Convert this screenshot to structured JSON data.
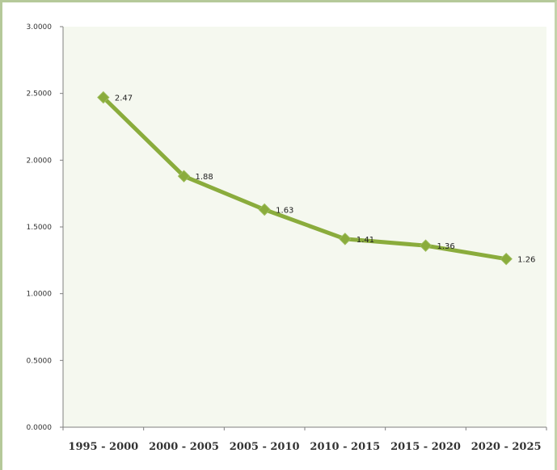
{
  "chart_data": {
    "type": "line",
    "categories": [
      "1995 - 2000",
      "2000 - 2005",
      "2005 - 2010",
      "2010 - 2015",
      "2015 - 2020",
      "2020 - 2025"
    ],
    "series": [
      {
        "values": [
          2.47,
          1.88,
          1.63,
          1.41,
          1.36,
          1.26
        ]
      }
    ],
    "data_labels": [
      "2.47",
      "1.88",
      "1.63",
      "1.41",
      "1.36",
      "1.26"
    ],
    "y_ticks": [
      "0.0000",
      "0.5000",
      "1.0000",
      "1.5000",
      "2.0000",
      "2.5000",
      "3.0000"
    ],
    "ylim": [
      0,
      3
    ],
    "grid": false,
    "line_color": "#8aac3c",
    "plot_background": "#f5f8ef"
  }
}
